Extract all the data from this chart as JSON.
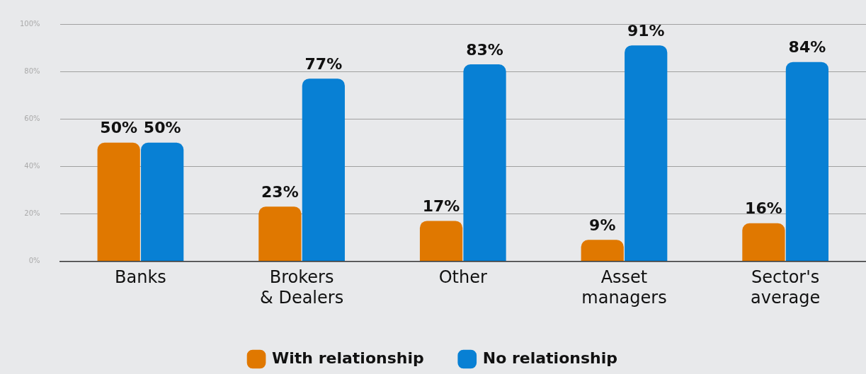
{
  "chart_data": {
    "type": "bar",
    "categories": [
      "Banks",
      "Brokers & Dealers",
      "Other",
      "Asset managers",
      "Sector's average"
    ],
    "series": [
      {
        "name": "With relationship",
        "color": "#e07800",
        "values": [
          50,
          23,
          17,
          9,
          16
        ],
        "value_labels": [
          "50%",
          "23%",
          "17%",
          "9%",
          "16%"
        ]
      },
      {
        "name": "No relationship",
        "color": "#0880d4",
        "values": [
          50,
          77,
          83,
          91,
          84
        ],
        "value_labels": [
          "50%",
          "77%",
          "83%",
          "91%",
          "84%"
        ]
      }
    ],
    "ylim": [
      0,
      100
    ],
    "yticks": [
      {
        "value": 0,
        "label": "0%"
      },
      {
        "value": 20,
        "label": "20%"
      },
      {
        "value": 40,
        "label": "40%"
      },
      {
        "value": 60,
        "label": "60%"
      },
      {
        "value": 80,
        "label": "80%"
      },
      {
        "value": 100,
        "label": "100%"
      }
    ],
    "grid": "y",
    "legend": "bottom"
  }
}
